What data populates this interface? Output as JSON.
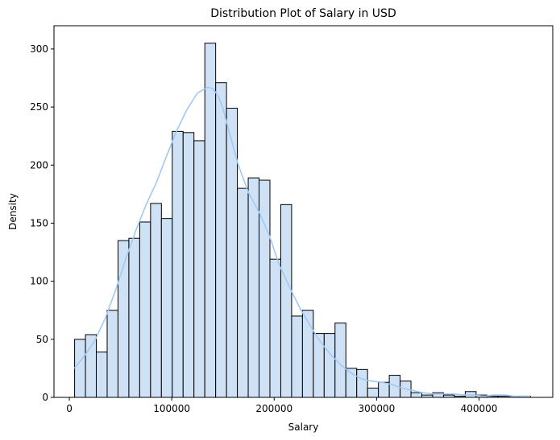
{
  "chart_data": {
    "type": "bar",
    "subtype": "histogram-with-kde",
    "title": "Distribution Plot of Salary in USD",
    "xlabel": "Salary",
    "ylabel": "Density",
    "xlim": [
      -15000,
      472000
    ],
    "ylim": [
      0,
      320
    ],
    "xticks": [
      0,
      100000,
      200000,
      300000,
      400000
    ],
    "xtick_labels": [
      "0",
      "100000",
      "200000",
      "300000",
      "400000"
    ],
    "yticks": [
      0,
      50,
      100,
      150,
      200,
      250,
      300
    ],
    "ytick_labels": [
      "0",
      "50",
      "100",
      "150",
      "200",
      "250",
      "300"
    ],
    "grid": false,
    "bin_start": 5132,
    "bin_width": 10595,
    "counts": [
      50,
      54,
      39,
      75,
      135,
      137,
      151,
      167,
      154,
      229,
      228,
      221,
      305,
      271,
      249,
      180,
      189,
      187,
      119,
      166,
      70,
      75,
      55,
      55,
      64,
      25,
      24,
      8,
      13,
      19,
      14,
      4,
      2,
      4,
      2,
      1,
      5,
      2,
      1,
      1,
      1,
      1
    ],
    "kde": {
      "x": [
        5000,
        15000,
        25000,
        35000,
        45000,
        55000,
        65000,
        75000,
        85000,
        95000,
        105000,
        115000,
        125000,
        135000,
        140000,
        145000,
        150000,
        155000,
        165000,
        175000,
        185000,
        195000,
        205000,
        215000,
        225000,
        235000,
        245000,
        255000,
        265000,
        275000,
        285000,
        295000,
        305000,
        315000,
        325000,
        335000,
        345000,
        355000,
        365000,
        375000,
        385000,
        395000,
        405000,
        415000,
        425000,
        435000,
        450000
      ],
      "y": [
        25,
        36,
        49,
        68,
        92,
        119,
        144,
        166,
        185,
        208,
        230,
        248,
        262,
        267,
        266,
        260,
        249,
        232,
        200,
        176,
        160,
        140,
        114,
        95,
        77,
        62,
        48,
        37,
        28,
        21,
        16,
        14,
        13,
        11,
        8,
        6,
        4,
        3,
        3,
        3,
        2,
        2,
        1,
        2,
        2,
        1,
        1
      ]
    },
    "colors": {
      "bar_fill": "#cfe1f5",
      "bar_edge": "#000000",
      "kde_line": "#a1c9f4",
      "axis": "#000000"
    }
  }
}
